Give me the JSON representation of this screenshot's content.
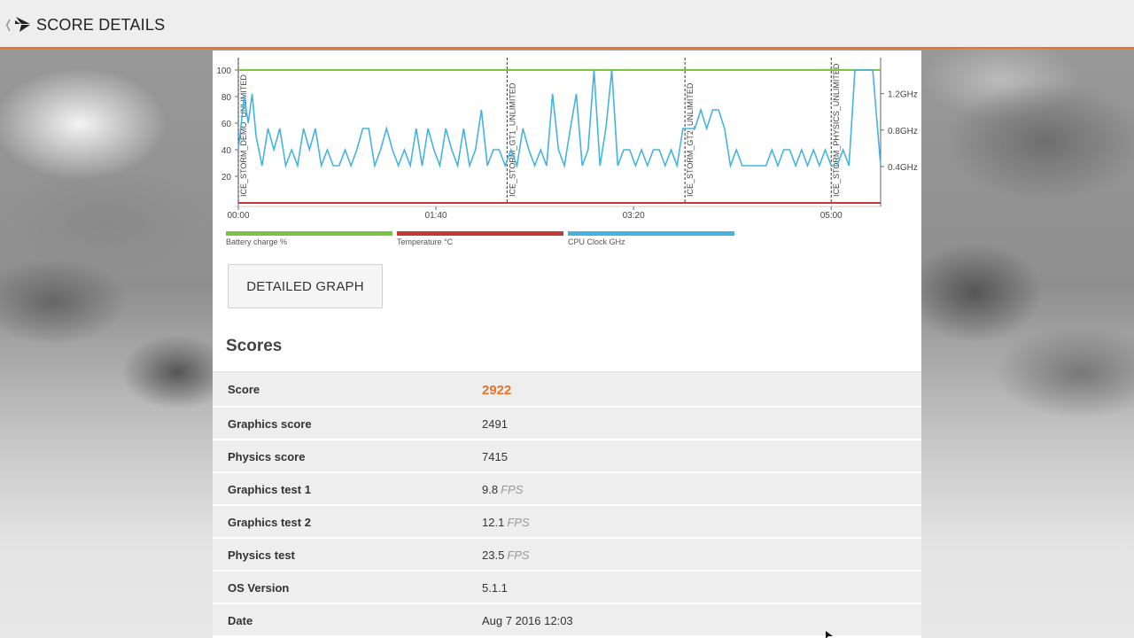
{
  "header": {
    "title": "SCORE DETAILS",
    "back_glyph": "❬",
    "accent_color": "#e8742a"
  },
  "chart_data": {
    "type": "line",
    "x_ticks": [
      "00:00",
      "01:40",
      "03:20",
      "05:00"
    ],
    "y_ticks_left": [
      "100",
      "80",
      "60",
      "40",
      "20"
    ],
    "y_ticks_right": [
      "1.2GHz",
      "0.8GHz",
      "0.4GHz"
    ],
    "ylim": [
      0,
      100
    ],
    "markers": [
      "ICE_STORM_DEMO_UNLIMITED",
      "ICE_STORM_GT1_UNLIMITED",
      "ICE_STORM_GT2_UNLIMITED",
      "ICE_STORM_PHYSICS_UNLIMITED"
    ],
    "marker_positions_s": [
      0,
      136,
      226,
      300
    ],
    "x_range_s": [
      0,
      325
    ],
    "series": [
      {
        "name": "Battery charge %",
        "color": "#7dc242",
        "x": [
          0,
          325
        ],
        "values": [
          100,
          100
        ]
      },
      {
        "name": "Temperature °C",
        "color": "#c0393b",
        "x": [
          0,
          325
        ],
        "values": [
          0,
          0
        ]
      },
      {
        "name": "CPU Clock GHz",
        "color": "#45b3e0",
        "x": [
          0,
          3,
          5,
          7,
          9,
          12,
          15,
          18,
          21,
          24,
          27,
          30,
          33,
          36,
          39,
          42,
          45,
          48,
          51,
          54,
          57,
          60,
          63,
          66,
          69,
          72,
          75,
          78,
          81,
          84,
          87,
          90,
          93,
          96,
          99,
          102,
          105,
          108,
          111,
          114,
          117,
          120,
          123,
          126,
          129,
          132,
          135,
          138,
          141,
          144,
          147,
          150,
          153,
          156,
          159,
          162,
          165,
          168,
          171,
          174,
          177,
          180,
          183,
          186,
          189,
          192,
          195,
          198,
          201,
          204,
          207,
          210,
          213,
          216,
          219,
          222,
          225,
          228,
          231,
          234,
          237,
          240,
          243,
          246,
          249,
          252,
          255,
          258,
          261,
          264,
          267,
          270,
          273,
          276,
          279,
          282,
          285,
          288,
          291,
          294,
          297,
          300,
          303,
          306,
          309,
          312,
          315,
          318,
          321,
          325
        ],
        "values": [
          40,
          80,
          60,
          82,
          50,
          28,
          56,
          40,
          56,
          28,
          40,
          28,
          56,
          40,
          56,
          28,
          40,
          28,
          28,
          40,
          28,
          40,
          56,
          56,
          28,
          40,
          56,
          40,
          28,
          40,
          28,
          56,
          28,
          56,
          40,
          28,
          56,
          40,
          28,
          56,
          28,
          40,
          70,
          28,
          40,
          40,
          28,
          40,
          28,
          56,
          40,
          28,
          40,
          28,
          82,
          40,
          28,
          56,
          82,
          28,
          40,
          100,
          28,
          56,
          100,
          28,
          40,
          40,
          28,
          40,
          28,
          40,
          40,
          28,
          40,
          28,
          56,
          56,
          56,
          70,
          56,
          70,
          70,
          56,
          28,
          40,
          28,
          28,
          28,
          28,
          28,
          40,
          28,
          40,
          40,
          28,
          40,
          28,
          40,
          28,
          40,
          28,
          28,
          40,
          28,
          100,
          100,
          100,
          100,
          28
        ]
      }
    ]
  },
  "detailed_graph_button": "DETAILED GRAPH",
  "scores": {
    "heading": "Scores",
    "rows": [
      {
        "label": "Score",
        "value": "2922",
        "unit": ""
      },
      {
        "label": "Graphics score",
        "value": "2491",
        "unit": ""
      },
      {
        "label": "Physics score",
        "value": "7415",
        "unit": ""
      },
      {
        "label": "Graphics test 1",
        "value": "9.8",
        "unit": "FPS"
      },
      {
        "label": "Graphics test 2",
        "value": "12.1",
        "unit": "FPS"
      },
      {
        "label": "Physics test",
        "value": "23.5",
        "unit": "FPS"
      },
      {
        "label": "OS Version",
        "value": "5.1.1",
        "unit": ""
      },
      {
        "label": "Date",
        "value": "Aug 7 2016 12:03",
        "unit": ""
      }
    ]
  }
}
